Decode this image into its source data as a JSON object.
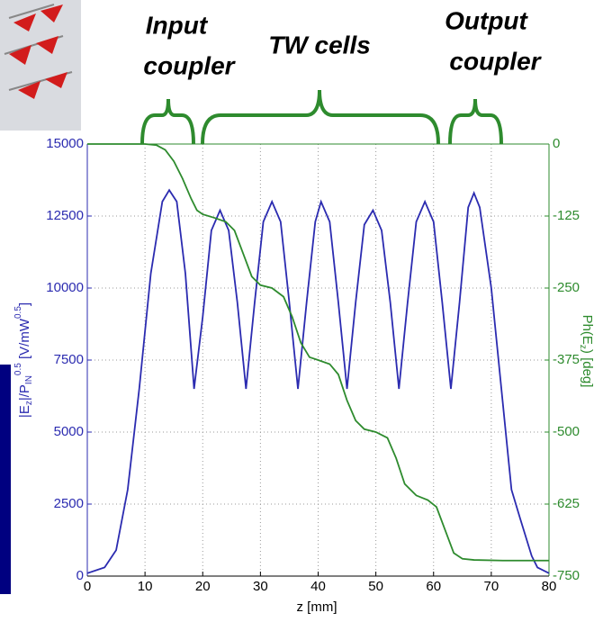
{
  "chart_data": {
    "type": "line",
    "annotations": [
      "Input",
      "coupler",
      "TW cells",
      "Output",
      "coupler"
    ],
    "xlabel": "z [mm]",
    "ylabel_parts": [
      "|E",
      "z",
      "|/P",
      "IN",
      "0.5",
      " [V/mW",
      "0.5",
      "]"
    ],
    "y2label_parts": [
      "Ph(E",
      "z",
      ") [deg]"
    ],
    "xlim": [
      0,
      80
    ],
    "xticks": [
      0,
      10,
      20,
      30,
      40,
      50,
      60,
      70,
      80
    ],
    "ylim": [
      0,
      15000
    ],
    "yticks": [
      0,
      2500,
      5000,
      7500,
      10000,
      12500,
      15000
    ],
    "y2lim": [
      -750,
      0
    ],
    "y2ticks": [
      0,
      -125,
      -250,
      -375,
      -500,
      -625,
      -750
    ],
    "grid": true,
    "series": [
      {
        "color": "#2b2bb0",
        "axis": "y",
        "x": [
          0,
          3,
          5,
          7,
          9,
          11,
          13,
          14.2,
          15.5,
          17,
          18.5,
          20,
          21.5,
          23,
          24.5,
          26,
          27.5,
          29,
          30.5,
          32,
          33.5,
          35,
          36.5,
          38,
          39.5,
          40.5,
          42,
          43.5,
          45,
          46.5,
          48,
          49.5,
          51,
          52.5,
          54,
          55.5,
          57,
          58.5,
          60,
          61.5,
          63,
          64.5,
          66,
          67,
          68,
          70,
          72,
          73.5,
          75,
          77,
          78,
          80
        ],
        "values": [
          100,
          300,
          900,
          3000,
          6500,
          10500,
          13000,
          13400,
          13000,
          10500,
          6500,
          9000,
          12000,
          12700,
          12000,
          9500,
          6500,
          9500,
          12300,
          13000,
          12300,
          9500,
          6500,
          9500,
          12300,
          13000,
          12300,
          9500,
          6500,
          9500,
          12200,
          12700,
          12000,
          9500,
          6500,
          9500,
          12300,
          13000,
          12300,
          9500,
          6500,
          9500,
          12800,
          13300,
          12800,
          10000,
          6000,
          3000,
          2000,
          700,
          300,
          100
        ]
      },
      {
        "color": "#2e8b2e",
        "axis": "y2",
        "x": [
          0,
          10,
          12,
          13.5,
          15,
          16.5,
          18,
          19,
          20,
          22,
          24,
          25.5,
          27,
          28.5,
          30,
          32,
          34,
          35.5,
          37,
          38.5,
          40,
          42,
          43.5,
          45,
          46.5,
          48,
          50,
          52,
          53.5,
          55,
          57,
          59,
          60.5,
          62,
          63.5,
          65,
          67,
          72,
          80
        ],
        "values": [
          0,
          0,
          -2,
          -10,
          -30,
          -60,
          -95,
          -115,
          -122,
          -128,
          -135,
          -150,
          -190,
          -230,
          -245,
          -250,
          -265,
          -300,
          -345,
          -370,
          -375,
          -382,
          -400,
          -445,
          -480,
          -495,
          -500,
          -510,
          -545,
          -590,
          -610,
          -618,
          -630,
          -670,
          -710,
          -720,
          -722,
          -723,
          -723
        ]
      }
    ]
  }
}
